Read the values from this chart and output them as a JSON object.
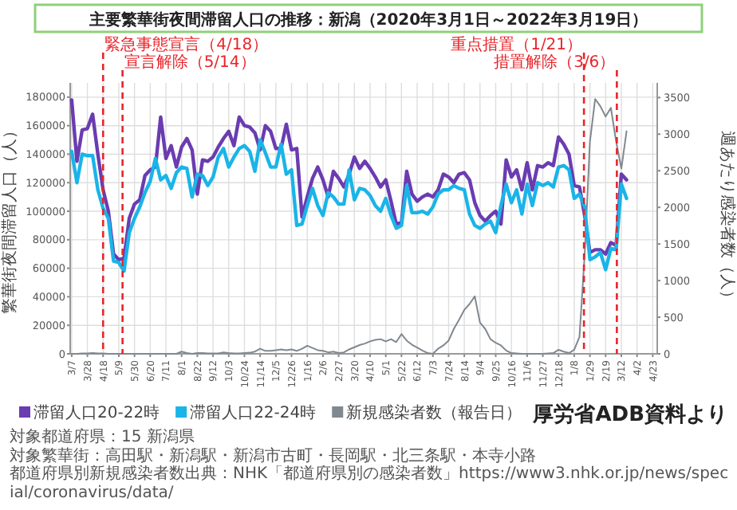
{
  "chart_data": {
    "type": "line",
    "title": "主要繁華街夜間滞留人口の推移：新潟（2020年3月1日～2022年3月19日）",
    "ylabel": "繁華街夜間滞留人口（人）",
    "y2label": "週あたり感染者数（人）",
    "annotations": [
      "厚労省ADB資料より",
      "対象都道府県：15 新潟県",
      "対象繁華街：高田駅・新潟駅・新潟市古町・長岡駅・北三条駅・本寺小路",
      "都道府県別新規感染者数出典：NHK「都道府県別の感染者数」https://www3.nhk.or.jp/news/special/coronavirus/data/"
    ],
    "x": [
      "2020-03-07",
      "2020-03-14",
      "2020-03-21",
      "2020-03-28",
      "2020-04-04",
      "2020-04-11",
      "2020-04-18",
      "2020-04-25",
      "2020-05-02",
      "2020-05-09",
      "2020-05-16",
      "2020-05-23",
      "2020-05-30",
      "2020-06-06",
      "2020-06-13",
      "2020-06-20",
      "2020-06-27",
      "2020-07-04",
      "2020-07-11",
      "2020-07-18",
      "2020-07-25",
      "2020-08-01",
      "2020-08-08",
      "2020-08-15",
      "2020-08-22",
      "2020-08-29",
      "2020-09-05",
      "2020-09-12",
      "2020-09-19",
      "2020-09-26",
      "2020-10-03",
      "2020-10-10",
      "2020-10-17",
      "2020-10-24",
      "2020-10-31",
      "2020-11-07",
      "2020-11-14",
      "2020-11-21",
      "2020-11-28",
      "2020-12-05",
      "2020-12-12",
      "2020-12-19",
      "2020-12-26",
      "2021-01-02",
      "2021-01-09",
      "2021-01-16",
      "2021-01-23",
      "2021-01-30",
      "2021-02-06",
      "2021-02-13",
      "2021-02-20",
      "2021-02-27",
      "2021-03-06",
      "2021-03-13",
      "2021-03-20",
      "2021-03-27",
      "2021-04-03",
      "2021-04-10",
      "2021-04-17",
      "2021-04-24",
      "2021-05-01",
      "2021-05-08",
      "2021-05-15",
      "2021-05-22",
      "2021-05-29",
      "2021-06-05",
      "2021-06-12",
      "2021-06-19",
      "2021-06-26",
      "2021-07-03",
      "2021-07-10",
      "2021-07-17",
      "2021-07-24",
      "2021-07-31",
      "2021-08-07",
      "2021-08-14",
      "2021-08-21",
      "2021-08-28",
      "2021-09-04",
      "2021-09-11",
      "2021-09-18",
      "2021-09-25",
      "2021-10-02",
      "2021-10-09",
      "2021-10-16",
      "2021-10-23",
      "2021-10-30",
      "2021-11-06",
      "2021-11-13",
      "2021-11-20",
      "2021-11-27",
      "2021-12-04",
      "2021-12-11",
      "2021-12-18",
      "2021-12-25",
      "2022-01-01",
      "2022-01-08",
      "2022-01-15",
      "2022-01-22",
      "2022-01-29",
      "2022-02-05",
      "2022-02-12",
      "2022-02-19",
      "2022-02-26",
      "2022-03-05",
      "2022-03-12",
      "2022-03-19"
    ],
    "series": [
      {
        "name": "滞留人口20-22時",
        "color": "#6a3cb0",
        "values": [
          178000,
          135000,
          157000,
          158000,
          168000,
          140000,
          115000,
          100000,
          70000,
          66000,
          67000,
          95000,
          105000,
          108000,
          125000,
          129000,
          131000,
          166000,
          137000,
          146000,
          131000,
          145000,
          151000,
          143000,
          112000,
          136000,
          135000,
          138000,
          145000,
          151000,
          156000,
          146000,
          166000,
          160000,
          159000,
          155000,
          143000,
          160000,
          156000,
          144000,
          144000,
          161000,
          143000,
          144000,
          96000,
          110000,
          123000,
          131000,
          122000,
          110000,
          128000,
          123000,
          117000,
          126000,
          138000,
          130000,
          135000,
          130000,
          124000,
          117000,
          122000,
          107000,
          91000,
          92000,
          128000,
          112000,
          107000,
          110000,
          112000,
          110000,
          115000,
          126000,
          124000,
          120000,
          126000,
          127000,
          122000,
          106000,
          97000,
          93000,
          97000,
          100000,
          91000,
          136000,
          124000,
          129000,
          115000,
          134000,
          115000,
          132000,
          131000,
          134000,
          132000,
          152000,
          147000,
          140000,
          118000,
          117000,
          97000,
          71000,
          73000,
          73000,
          70000,
          78000,
          76000,
          126000,
          122000
        ]
      },
      {
        "name": "滞留人口22-24時",
        "color": "#1ab4e8",
        "values": [
          142000,
          120000,
          140000,
          139000,
          139000,
          115000,
          102000,
          95000,
          65000,
          64000,
          58000,
          85000,
          95000,
          103000,
          113000,
          121000,
          137000,
          122000,
          125000,
          116000,
          127000,
          131000,
          130000,
          110000,
          126000,
          125000,
          118000,
          124000,
          138000,
          144000,
          131000,
          138000,
          144000,
          146000,
          142000,
          128000,
          150000,
          141000,
          131000,
          131000,
          147000,
          126000,
          129000,
          90000,
          91000,
          104000,
          116000,
          104000,
          97000,
          113000,
          110000,
          105000,
          105000,
          129000,
          108000,
          116000,
          115000,
          111000,
          104000,
          100000,
          109000,
          97000,
          88000,
          90000,
          118000,
          99000,
          99000,
          100000,
          98000,
          103000,
          112000,
          115000,
          115000,
          118000,
          116000,
          115000,
          98000,
          90000,
          88000,
          91000,
          93000,
          85000,
          104000,
          119000,
          106000,
          115000,
          98000,
          119000,
          104000,
          120000,
          118000,
          120000,
          117000,
          131000,
          132000,
          129000,
          109000,
          112000,
          103000,
          66000,
          68000,
          71000,
          59000,
          74000,
          73000,
          119000,
          109000
        ]
      },
      {
        "name": "新規感染者数（報告日）",
        "color": "#808890",
        "axis": "y2",
        "values": [
          0,
          0,
          5,
          5,
          10,
          5,
          5,
          0,
          0,
          0,
          0,
          0,
          0,
          0,
          0,
          0,
          0,
          0,
          0,
          0,
          0,
          30,
          10,
          0,
          10,
          10,
          5,
          5,
          5,
          20,
          10,
          5,
          5,
          10,
          15,
          30,
          70,
          40,
          40,
          50,
          60,
          50,
          60,
          40,
          70,
          110,
          80,
          50,
          40,
          20,
          30,
          10,
          20,
          60,
          90,
          120,
          140,
          170,
          190,
          200,
          170,
          200,
          160,
          270,
          180,
          125,
          85,
          45,
          10,
          0,
          70,
          115,
          180,
          340,
          465,
          600,
          680,
          785,
          425,
          340,
          200,
          150,
          115,
          45,
          10,
          5,
          0,
          0,
          0,
          0,
          0,
          5,
          10,
          55,
          30,
          10,
          55,
          230,
          1360,
          2900,
          3480,
          3380,
          3240,
          3360,
          2900,
          2530,
          3040
        ]
      }
    ],
    "xlim": [
      "2020-03-05",
      "2022-04-29"
    ],
    "xticks": [
      {
        "value": "2020-03-07",
        "label": "3/7"
      },
      {
        "value": "2020-03-28",
        "label": "3/28"
      },
      {
        "value": "2020-04-18",
        "label": "4/18"
      },
      {
        "value": "2020-05-09",
        "label": "5/9"
      },
      {
        "value": "2020-05-30",
        "label": "5/30"
      },
      {
        "value": "2020-06-20",
        "label": "6/20"
      },
      {
        "value": "2020-07-11",
        "label": "7/11"
      },
      {
        "value": "2020-08-01",
        "label": "8/1"
      },
      {
        "value": "2020-08-22",
        "label": "8/22"
      },
      {
        "value": "2020-09-12",
        "label": "9/12"
      },
      {
        "value": "2020-10-03",
        "label": "10/3"
      },
      {
        "value": "2020-10-24",
        "label": "10/24"
      },
      {
        "value": "2020-11-14",
        "label": "11/14"
      },
      {
        "value": "2020-12-05",
        "label": "12/5"
      },
      {
        "value": "2020-12-26",
        "label": "12/26"
      },
      {
        "value": "2021-01-16",
        "label": "1/16"
      },
      {
        "value": "2021-02-06",
        "label": "2/6"
      },
      {
        "value": "2021-02-27",
        "label": "2/27"
      },
      {
        "value": "2021-03-20",
        "label": "3/20"
      },
      {
        "value": "2021-04-10",
        "label": "4/10"
      },
      {
        "value": "2021-05-01",
        "label": "5/1"
      },
      {
        "value": "2021-05-22",
        "label": "5/22"
      },
      {
        "value": "2021-06-12",
        "label": "6/12"
      },
      {
        "value": "2021-07-03",
        "label": "7/3"
      },
      {
        "value": "2021-07-24",
        "label": "7/24"
      },
      {
        "value": "2021-08-14",
        "label": "8/14"
      },
      {
        "value": "2021-09-04",
        "label": "9/4"
      },
      {
        "value": "2021-09-25",
        "label": "9/25"
      },
      {
        "value": "2021-10-16",
        "label": "10/16"
      },
      {
        "value": "2021-11-06",
        "label": "11/6"
      },
      {
        "value": "2021-11-27",
        "label": "11/27"
      },
      {
        "value": "2021-12-18",
        "label": "12/18"
      },
      {
        "value": "2022-01-08",
        "label": "1/8"
      },
      {
        "value": "2022-01-29",
        "label": "1/29"
      },
      {
        "value": "2022-02-19",
        "label": "2/19"
      },
      {
        "value": "2022-03-12",
        "label": "3/12"
      },
      {
        "value": "2022-04-02",
        "label": "4/2"
      },
      {
        "value": "2022-04-23",
        "label": "4/23"
      }
    ],
    "ylim": [
      0,
      190000
    ],
    "yticks": [
      0,
      20000,
      40000,
      60000,
      80000,
      100000,
      120000,
      140000,
      160000,
      180000
    ],
    "y2lim": [
      0,
      3700
    ],
    "y2ticks": [
      0,
      500,
      1000,
      1500,
      2000,
      2500,
      3000,
      3500
    ],
    "ref_lines": [
      {
        "axis": "x",
        "value": "2020-04-18",
        "label": "緊急事態宣言（4/18）",
        "color": "#e8242a",
        "line_style": "dashed"
      },
      {
        "axis": "x",
        "value": "2020-05-14",
        "label": "宣言解除（5/14）",
        "color": "#e8242a",
        "line_style": "dashed"
      },
      {
        "axis": "x",
        "value": "2022-01-21",
        "label": "重点措置（1/21）",
        "color": "#e8242a",
        "line_style": "dashed"
      },
      {
        "axis": "x",
        "value": "2022-03-06",
        "label": "措置解除（3/6）",
        "color": "#e8242a",
        "line_style": "dashed"
      }
    ],
    "grid": true,
    "legend": "bottom",
    "line_style": "solid"
  }
}
